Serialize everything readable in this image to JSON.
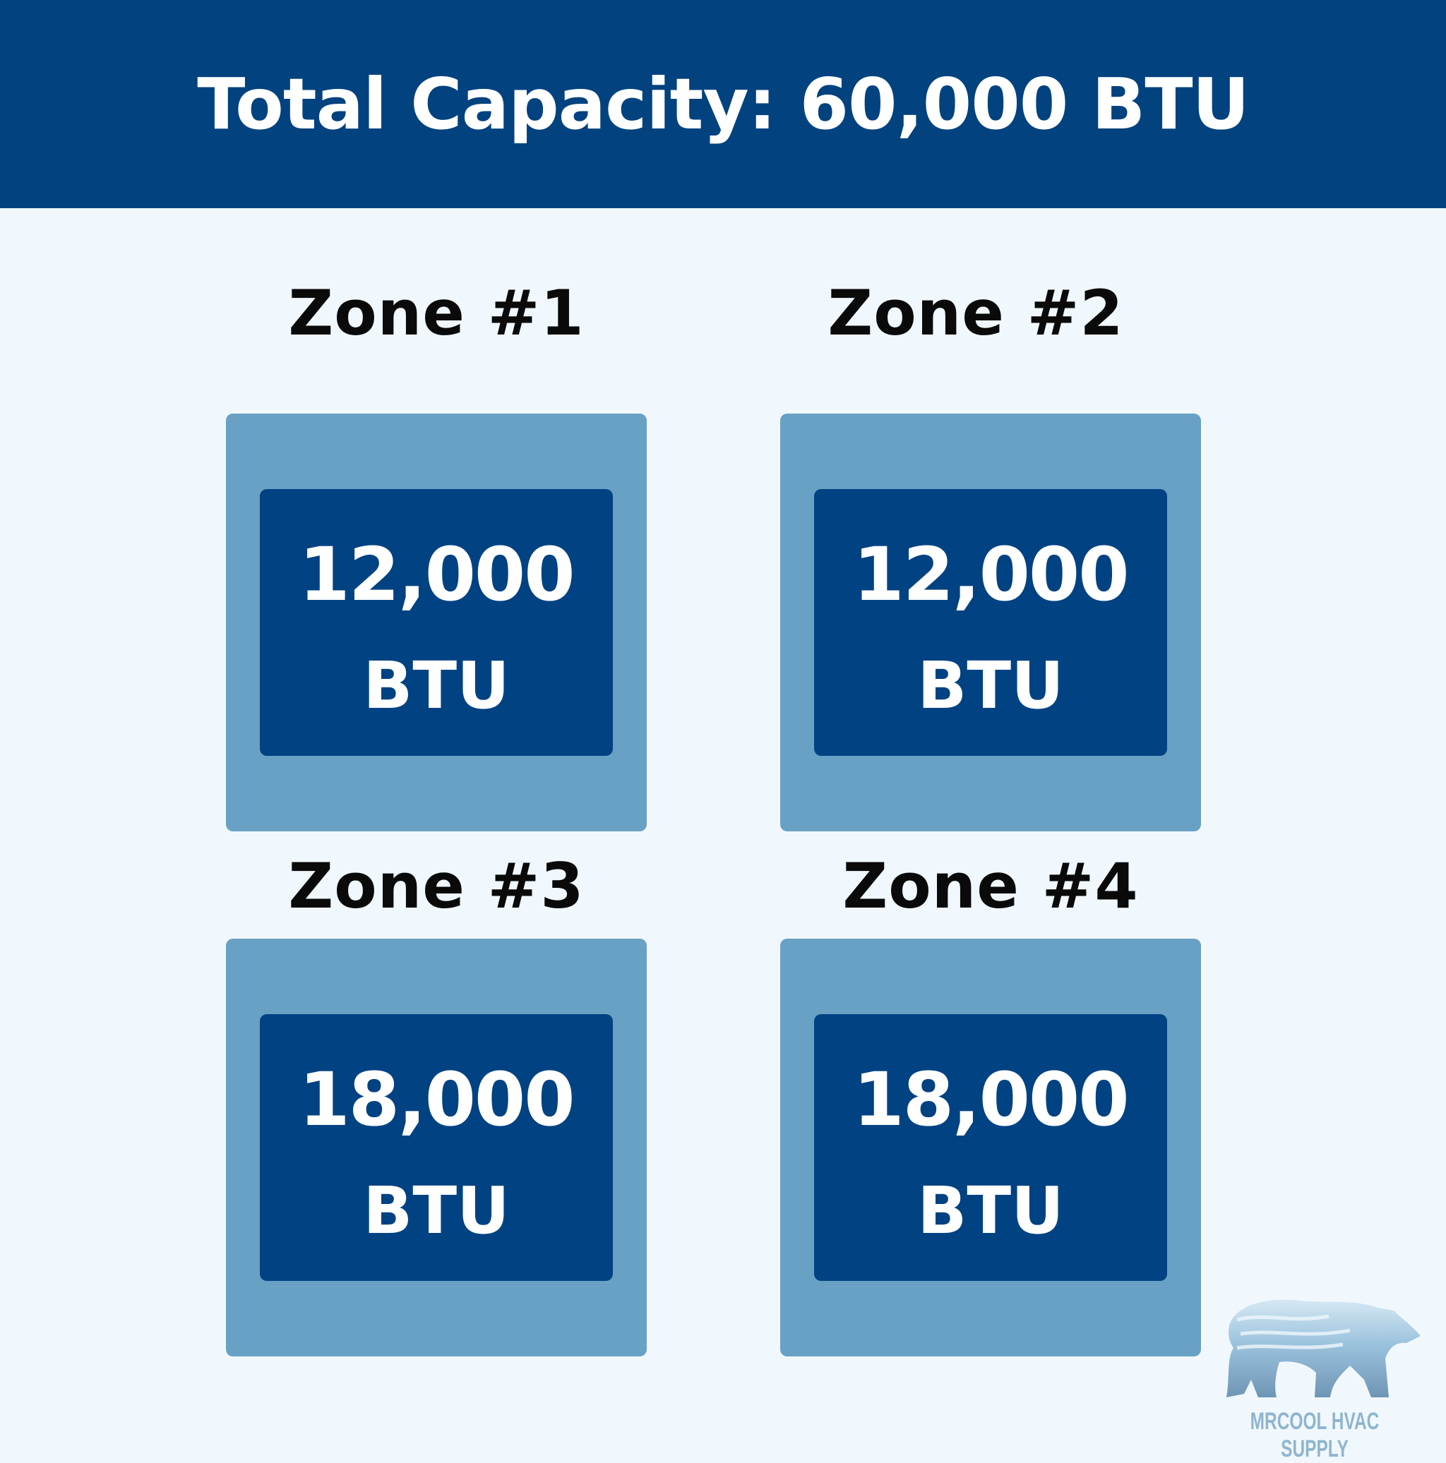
{
  "header": {
    "title": "Total Capacity: 60,000 BTU"
  },
  "zones": [
    {
      "label": "Zone #1",
      "capacity": "12,000",
      "unit": "BTU"
    },
    {
      "label": "Zone #2",
      "capacity": "12,000",
      "unit": "BTU"
    },
    {
      "label": "Zone #3",
      "capacity": "18,000",
      "unit": "BTU"
    },
    {
      "label": "Zone #4",
      "capacity": "18,000",
      "unit": "BTU"
    }
  ],
  "logo": {
    "text": "MRCOOL HVAC SUPPLY",
    "icon": "polar-bear-icon"
  },
  "colors": {
    "header": "#01427f",
    "background": "#f0f8fe",
    "outer_box": "#69a1c5",
    "inner_box": "#014282"
  }
}
